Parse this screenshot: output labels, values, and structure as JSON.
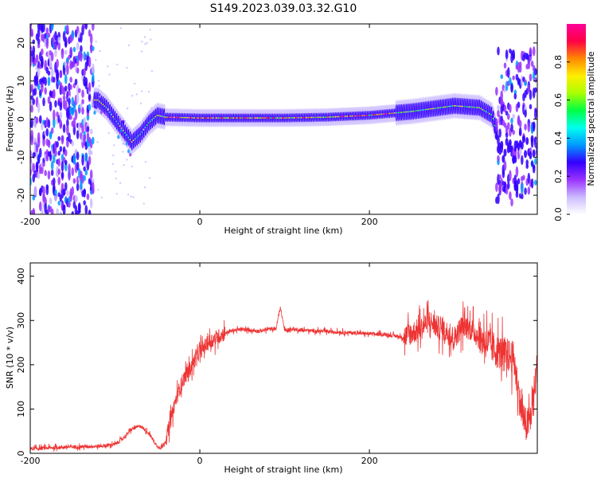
{
  "title": "S149.2023.039.03.32.G10",
  "colors": {
    "snr_line": "#ee3333",
    "frame": "#000000"
  },
  "chart_data": [
    {
      "type": "heatmap",
      "xlabel": "Height of straight line (km)",
      "ylabel": "Frequency (Hz)",
      "xlim": [
        -200,
        398
      ],
      "ylim": [
        -25,
        25
      ],
      "x_ticks": [
        -200,
        0,
        200
      ],
      "y_ticks": [
        20,
        10,
        0,
        -10,
        -20
      ],
      "x_tick_labels": [
        "-200",
        "0",
        "200"
      ],
      "y_tick_labels": [
        "20",
        "10",
        "0",
        "-10",
        "-20"
      ],
      "colorbar": {
        "label": "Normalized spectral amplitude",
        "range": [
          0,
          1
        ],
        "ticks": [
          0.0,
          0.2,
          0.4,
          0.6,
          0.8
        ],
        "tick_labels": [
          "0.0",
          "0.2",
          "0.4",
          "0.6",
          "0.8"
        ],
        "colormap": [
          "#ffffff",
          "#ccbbff",
          "#9933ff",
          "#3300ff",
          "#0099ff",
          "#00ffee",
          "#00ff44",
          "#aaff00",
          "#ffee00",
          "#ff8800",
          "#ff0044",
          "#ff0099"
        ]
      },
      "ridge": [
        [
          -120,
          5
        ],
        [
          -110,
          3
        ],
        [
          -100,
          0
        ],
        [
          -90,
          -3
        ],
        [
          -80,
          -6
        ],
        [
          -70,
          -4
        ],
        [
          -60,
          -1
        ],
        [
          -50,
          1
        ],
        [
          -40,
          0.5
        ],
        [
          0,
          0.3
        ],
        [
          50,
          0.3
        ],
        [
          100,
          0.3
        ],
        [
          150,
          0.5
        ],
        [
          200,
          1
        ],
        [
          250,
          2
        ],
        [
          300,
          3.5
        ],
        [
          330,
          3
        ],
        [
          345,
          1
        ],
        [
          355,
          -8
        ]
      ],
      "grid": false,
      "legend": "none"
    },
    {
      "type": "line",
      "xlabel": "Height of straight line (km)",
      "ylabel": "SNR (10 * v/v)",
      "xlim": [
        -200,
        398
      ],
      "ylim": [
        0,
        430
      ],
      "x_ticks": [
        -200,
        0,
        200
      ],
      "y_ticks": [
        0,
        100,
        200,
        300,
        400
      ],
      "x_tick_labels": [
        "-200",
        "0",
        "200"
      ],
      "y_tick_labels": [
        "0",
        "100",
        "200",
        "300",
        "400"
      ],
      "series": [
        {
          "x": [
            -200,
            -180,
            -160,
            -140,
            -120,
            -100,
            -90,
            -80,
            -70,
            -60,
            -50,
            -45,
            -40,
            -35,
            -30,
            -25,
            -20,
            -15,
            -10,
            -5,
            0,
            10,
            20,
            30,
            40,
            50,
            60,
            70,
            80,
            90,
            95,
            100,
            110,
            120,
            140,
            160,
            180,
            200,
            220,
            240,
            250,
            260,
            270,
            280,
            290,
            300,
            310,
            320,
            330,
            340,
            345,
            350,
            360,
            370,
            375,
            380,
            385,
            390,
            395,
            398
          ],
          "y": [
            10,
            12,
            14,
            15,
            16,
            20,
            35,
            55,
            62,
            45,
            15,
            12,
            30,
            70,
            110,
            140,
            165,
            180,
            195,
            215,
            230,
            250,
            262,
            272,
            278,
            280,
            278,
            276,
            280,
            282,
            330,
            278,
            280,
            278,
            276,
            274,
            272,
            270,
            268,
            262,
            272,
            280,
            300,
            285,
            275,
            260,
            290,
            280,
            260,
            250,
            240,
            230,
            225,
            215,
            150,
            90,
            60,
            80,
            150,
            200
          ]
        }
      ],
      "grid": false,
      "legend": "none"
    }
  ]
}
